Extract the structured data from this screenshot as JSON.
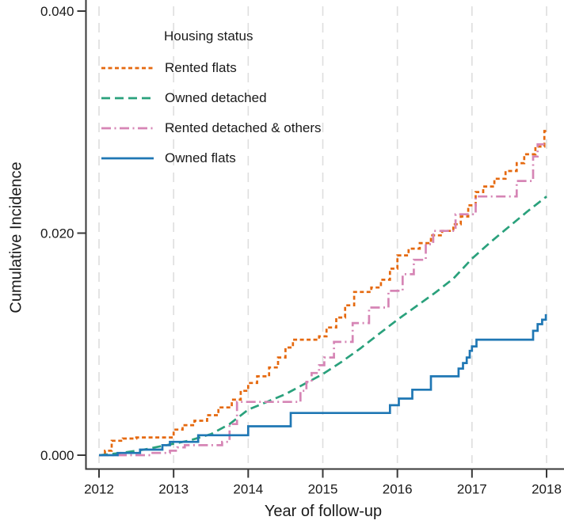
{
  "chart_data": {
    "type": "line",
    "subtype": "cumulative-incidence-step",
    "title": "",
    "xlabel": "Year of follow-up",
    "ylabel": "Cumulative Incidence",
    "legend_title": "Housing status",
    "legend_position": "top-left-inside",
    "grid": "vertical-dashed",
    "xlim": [
      2012,
      2018
    ],
    "ylim": [
      0,
      0.04
    ],
    "xticks": [
      2012,
      2013,
      2014,
      2015,
      2016,
      2017,
      2018
    ],
    "yticks": [
      0,
      0.02,
      0.04
    ],
    "ytick_labels": [
      "0.000",
      "0.020",
      "0.040"
    ],
    "colors": {
      "axis": "#383838",
      "grid": "#dedede",
      "text": "#1a1a1a"
    },
    "series": [
      {
        "name": "Rented flats",
        "color": "#e5690f",
        "style": "dashed-short",
        "step": true,
        "points": [
          [
            2012.0,
            0.0
          ],
          [
            2012.08,
            0.0004
          ],
          [
            2012.17,
            0.0013
          ],
          [
            2012.32,
            0.0015
          ],
          [
            2012.5,
            0.0016
          ],
          [
            2013.0,
            0.0023
          ],
          [
            2013.12,
            0.0027
          ],
          [
            2013.28,
            0.0031
          ],
          [
            2013.45,
            0.0036
          ],
          [
            2013.6,
            0.0043
          ],
          [
            2013.78,
            0.005
          ],
          [
            2013.9,
            0.0058
          ],
          [
            2014.0,
            0.0065
          ],
          [
            2014.12,
            0.0071
          ],
          [
            2014.28,
            0.0079
          ],
          [
            2014.4,
            0.0088
          ],
          [
            2014.5,
            0.0097
          ],
          [
            2014.6,
            0.0104
          ],
          [
            2014.95,
            0.0107
          ],
          [
            2015.05,
            0.0115
          ],
          [
            2015.18,
            0.0124
          ],
          [
            2015.3,
            0.0135
          ],
          [
            2015.42,
            0.0147
          ],
          [
            2015.65,
            0.0151
          ],
          [
            2015.78,
            0.0158
          ],
          [
            2015.9,
            0.0168
          ],
          [
            2016.0,
            0.018
          ],
          [
            2016.15,
            0.0186
          ],
          [
            2016.3,
            0.0191
          ],
          [
            2016.45,
            0.0198
          ],
          [
            2016.6,
            0.0202
          ],
          [
            2016.75,
            0.0208
          ],
          [
            2016.85,
            0.0215
          ],
          [
            2016.95,
            0.0225
          ],
          [
            2017.05,
            0.0237
          ],
          [
            2017.15,
            0.0242
          ],
          [
            2017.3,
            0.0249
          ],
          [
            2017.45,
            0.0256
          ],
          [
            2017.6,
            0.0263
          ],
          [
            2017.7,
            0.0271
          ],
          [
            2017.85,
            0.0278
          ],
          [
            2017.97,
            0.0292
          ],
          [
            2018.0,
            0.0292
          ]
        ]
      },
      {
        "name": "Owned detached",
        "color": "#2aa17c",
        "style": "dashed-long",
        "step": false,
        "points": [
          [
            2012.0,
            0.0
          ],
          [
            2012.3,
            0.0002
          ],
          [
            2012.6,
            0.0005
          ],
          [
            2012.9,
            0.0009
          ],
          [
            2013.2,
            0.0013
          ],
          [
            2013.5,
            0.0019
          ],
          [
            2013.75,
            0.0028
          ],
          [
            2014.0,
            0.0041
          ],
          [
            2014.25,
            0.0048
          ],
          [
            2014.5,
            0.0055
          ],
          [
            2014.75,
            0.0064
          ],
          [
            2015.0,
            0.0073
          ],
          [
            2015.25,
            0.0084
          ],
          [
            2015.5,
            0.0096
          ],
          [
            2015.75,
            0.0109
          ],
          [
            2016.0,
            0.0122
          ],
          [
            2016.25,
            0.0134
          ],
          [
            2016.5,
            0.0146
          ],
          [
            2016.75,
            0.0159
          ],
          [
            2017.0,
            0.0177
          ],
          [
            2017.25,
            0.0192
          ],
          [
            2017.5,
            0.0206
          ],
          [
            2017.75,
            0.022
          ],
          [
            2018.0,
            0.0233
          ]
        ]
      },
      {
        "name": "Rented detached & others",
        "color": "#d685b5",
        "style": "dash-dot",
        "step": true,
        "points": [
          [
            2012.0,
            0.0
          ],
          [
            2012.7,
            0.0002
          ],
          [
            2012.95,
            0.0004
          ],
          [
            2013.05,
            0.0007
          ],
          [
            2013.15,
            0.0009
          ],
          [
            2013.65,
            0.0012
          ],
          [
            2013.75,
            0.0028
          ],
          [
            2013.85,
            0.0048
          ],
          [
            2014.7,
            0.0058
          ],
          [
            2014.78,
            0.0066
          ],
          [
            2014.85,
            0.0074
          ],
          [
            2014.95,
            0.0081
          ],
          [
            2015.02,
            0.0088
          ],
          [
            2015.15,
            0.0102
          ],
          [
            2015.4,
            0.0119
          ],
          [
            2015.62,
            0.0133
          ],
          [
            2015.88,
            0.0148
          ],
          [
            2016.07,
            0.0163
          ],
          [
            2016.22,
            0.0176
          ],
          [
            2016.38,
            0.019
          ],
          [
            2016.48,
            0.0202
          ],
          [
            2016.78,
            0.0217
          ],
          [
            2017.05,
            0.0233
          ],
          [
            2017.6,
            0.0247
          ],
          [
            2017.82,
            0.0269
          ],
          [
            2017.88,
            0.028
          ],
          [
            2018.0,
            0.028
          ]
        ]
      },
      {
        "name": "Owned flats",
        "color": "#1f77b4",
        "style": "solid",
        "step": true,
        "points": [
          [
            2012.0,
            0.0
          ],
          [
            2012.25,
            0.0002
          ],
          [
            2012.55,
            0.0005
          ],
          [
            2012.85,
            0.0009
          ],
          [
            2012.95,
            0.0012
          ],
          [
            2013.33,
            0.0018
          ],
          [
            2014.0,
            0.0026
          ],
          [
            2014.57,
            0.0038
          ],
          [
            2015.9,
            0.0045
          ],
          [
            2016.02,
            0.0051
          ],
          [
            2016.2,
            0.0059
          ],
          [
            2016.45,
            0.0071
          ],
          [
            2016.82,
            0.0078
          ],
          [
            2016.88,
            0.0083
          ],
          [
            2016.93,
            0.0088
          ],
          [
            2016.97,
            0.0094
          ],
          [
            2017.0,
            0.0098
          ],
          [
            2017.06,
            0.0104
          ],
          [
            2017.82,
            0.0112
          ],
          [
            2017.88,
            0.0118
          ],
          [
            2017.94,
            0.0122
          ],
          [
            2017.99,
            0.0127
          ]
        ]
      }
    ]
  }
}
